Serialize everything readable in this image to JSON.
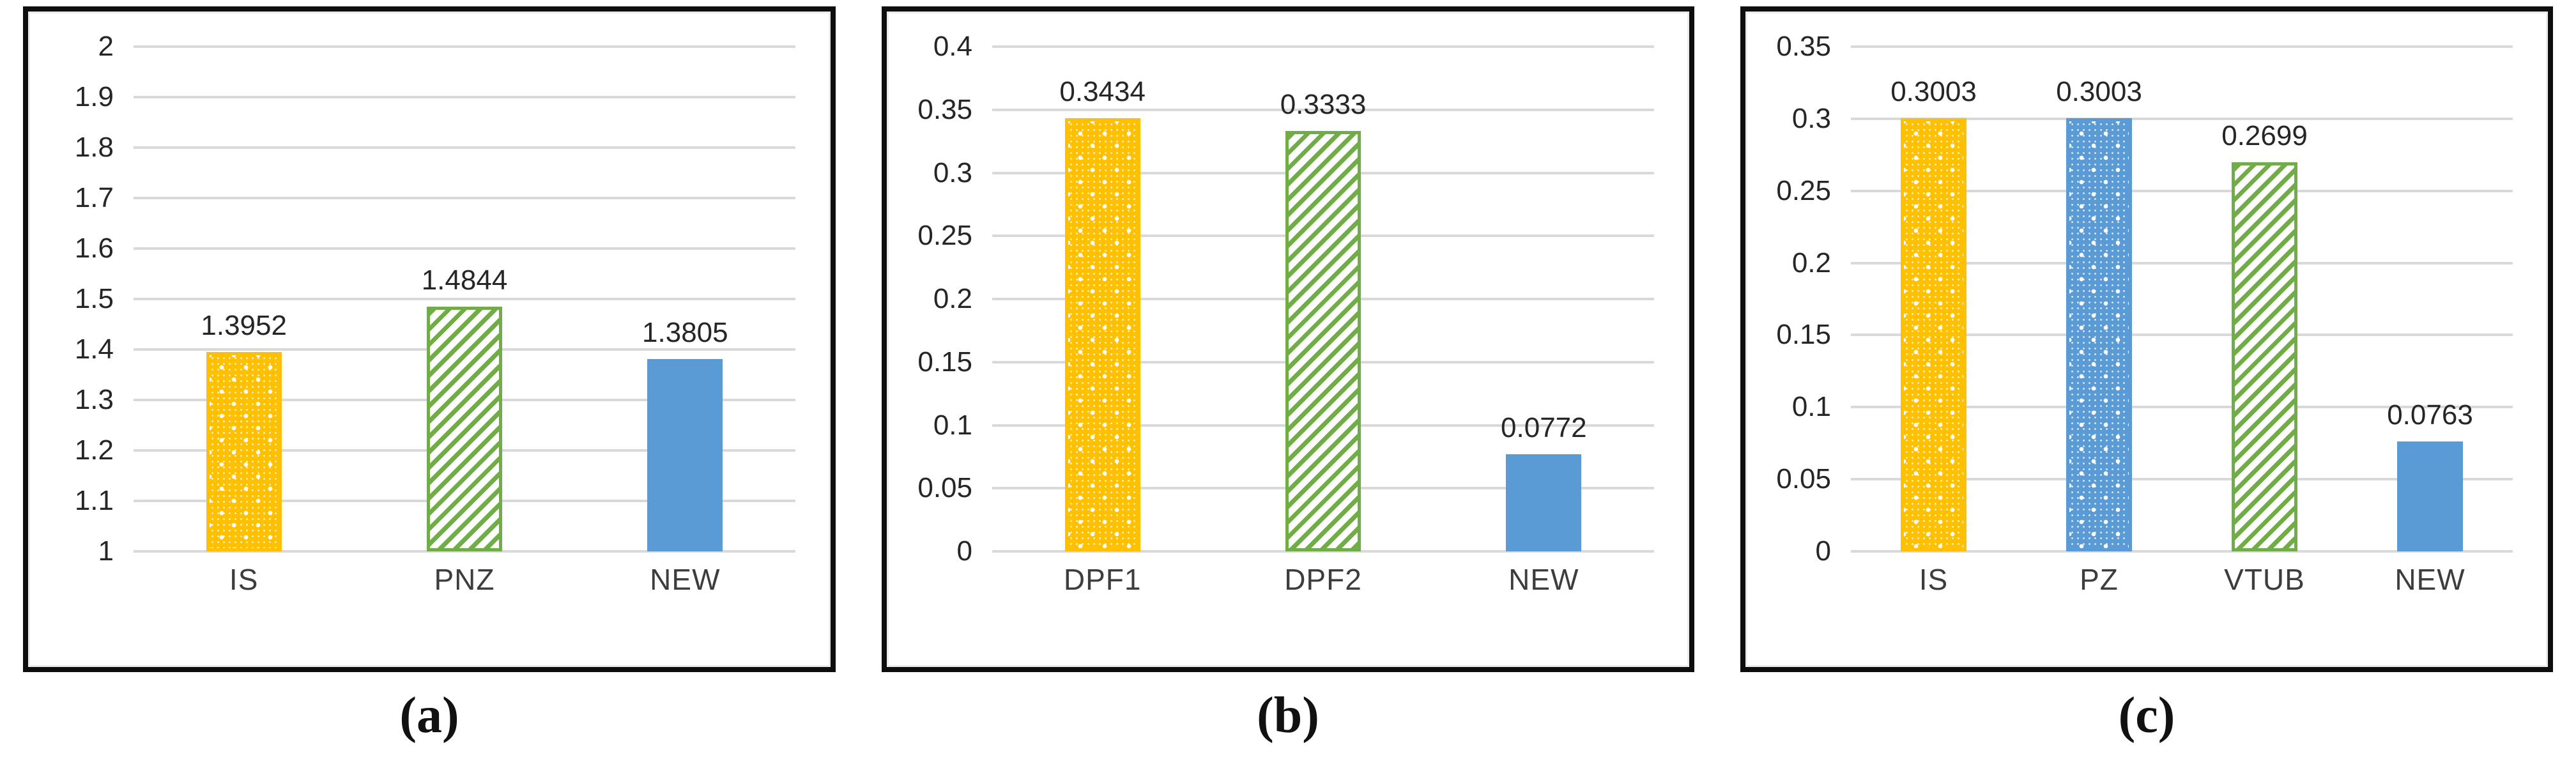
{
  "figure": {
    "description": "Three Excel-style bar chart panels",
    "panel_letters": [
      "a",
      "b",
      "c"
    ]
  },
  "colors": {
    "yellow_pattern": "#FFC000",
    "green_pattern": "#70AD47",
    "blue": "#5B9BD5",
    "gridline": "#D9D9D9",
    "tick_text": "#262626",
    "category_text": "#3D3D3D",
    "panel_border": "#0E0E0E"
  },
  "chart_data": [
    {
      "type": "bar",
      "caption": "(a)",
      "title": "",
      "xlabel": "",
      "ylabel": "",
      "categories": [
        "IS",
        "PNZ",
        "NEW"
      ],
      "values": [
        1.3952,
        1.4844,
        1.3805
      ],
      "value_labels": [
        "1.3952",
        "1.4844",
        "1.3805"
      ],
      "bar_styles": [
        "yellow-dots",
        "green-stripes",
        "blue-solid"
      ],
      "ylim": [
        1,
        2
      ],
      "ytick_labels": [
        "2",
        "1.9",
        "1.8",
        "1.7",
        "1.6",
        "1.5",
        "1.4",
        "1.3",
        "1.2",
        "1.1",
        "1"
      ],
      "grid": true,
      "legend": "none"
    },
    {
      "type": "bar",
      "caption": "(b)",
      "title": "",
      "xlabel": "",
      "ylabel": "",
      "categories": [
        "DPF1",
        "DPF2",
        "NEW"
      ],
      "values": [
        0.3434,
        0.3333,
        0.0772
      ],
      "value_labels": [
        "0.3434",
        "0.3333",
        "0.0772"
      ],
      "bar_styles": [
        "yellow-dots",
        "green-stripes",
        "blue-solid"
      ],
      "ylim": [
        0,
        0.4
      ],
      "ytick_labels": [
        "0.4",
        "0.35",
        "0.3",
        "0.25",
        "0.2",
        "0.15",
        "0.1",
        "0.05",
        "0"
      ],
      "grid": true,
      "legend": "none"
    },
    {
      "type": "bar",
      "caption": "(c)",
      "title": "",
      "xlabel": "",
      "ylabel": "",
      "categories": [
        "IS",
        "PZ",
        "VTUB",
        "NEW"
      ],
      "values": [
        0.3003,
        0.3003,
        0.2699,
        0.0763
      ],
      "value_labels": [
        "0.3003",
        "0.3003",
        "0.2699",
        "0.0763"
      ],
      "bar_styles": [
        "yellow-dots",
        "blue-dots",
        "green-stripes",
        "blue-solid"
      ],
      "ylim": [
        0,
        0.35
      ],
      "ytick_labels": [
        "0.35",
        "0.3",
        "0.25",
        "0.2",
        "0.15",
        "0.1",
        "0.05",
        "0"
      ],
      "grid": true,
      "legend": "none"
    }
  ]
}
